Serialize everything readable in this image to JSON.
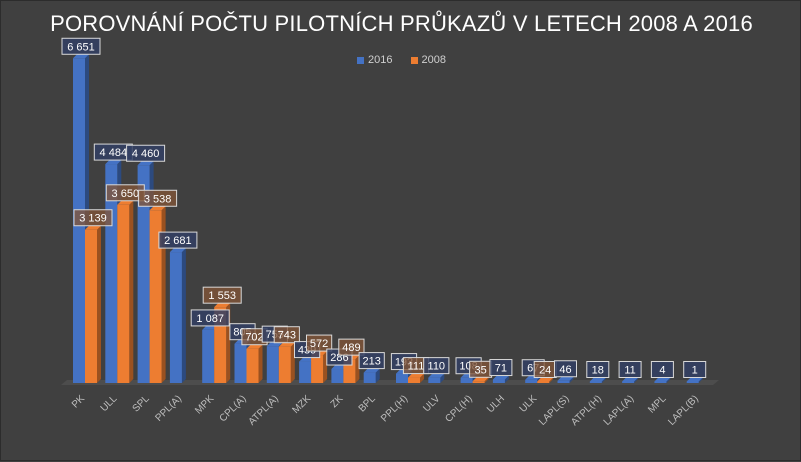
{
  "chart_data": {
    "type": "bar",
    "title": "POROVNÁNÍ POČTU PILOTNÍCH PRŮKAZŮ V LETECH 2008 A 2016",
    "categories": [
      "PK",
      "ULL",
      "SPL",
      "PPL(A)",
      "MPK",
      "CPL(A)",
      "ATPL(A)",
      "MZK",
      "ZK",
      "BPL",
      "PPL(H)",
      "ULV",
      "CPL(H)",
      "ULH",
      "ULK",
      "LAPL(S)",
      "ATPL(H)",
      "LAPL(A)",
      "MPL",
      "LAPL(B)"
    ],
    "series": [
      {
        "name": "2016",
        "color": "#4472c4",
        "values": [
          6651,
          4484,
          4460,
          2681,
          1087,
          805,
          755,
          439,
          286,
          213,
          193,
          110,
          108,
          71,
          67,
          46,
          18,
          11,
          4,
          1
        ],
        "labels": [
          "6 651",
          "4 484",
          "4 460",
          "2 681",
          "1 087",
          "805",
          "755",
          "439",
          "286",
          "213",
          "193",
          "110",
          "108",
          "71",
          "67",
          "46",
          "18",
          "11",
          "4",
          "1"
        ]
      },
      {
        "name": "2008",
        "color": "#ed7d31",
        "values": [
          3139,
          3650,
          3538,
          null,
          1553,
          702,
          743,
          572,
          489,
          null,
          111,
          null,
          35,
          null,
          24,
          null,
          null,
          null,
          null,
          null
        ],
        "labels": [
          "3 139",
          "3 650",
          "3 538",
          "",
          "1 553",
          "702",
          "743",
          "572",
          "489",
          "",
          "111",
          "",
          "35",
          "",
          "24",
          "",
          "",
          "",
          "",
          ""
        ]
      }
    ],
    "legend_position": "top",
    "grid": false,
    "ylim": [
      0,
      6800
    ]
  }
}
